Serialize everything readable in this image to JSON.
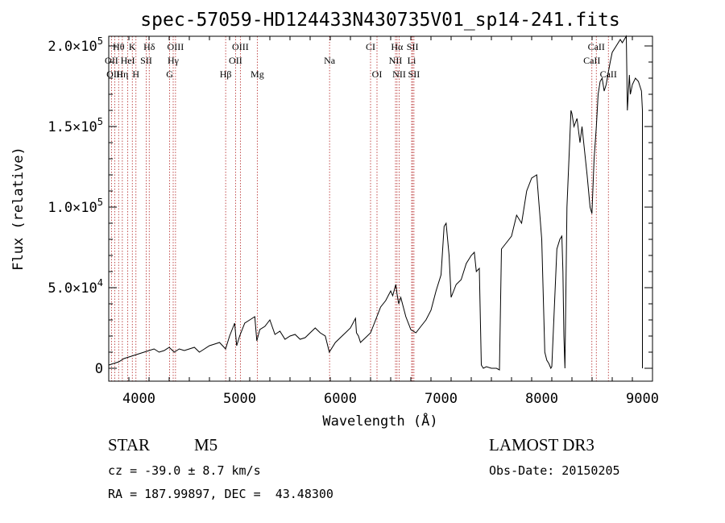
{
  "chart_data": {
    "type": "line",
    "title": "spec-57059-HD124433N430735V01_sp14-241.fits",
    "xlabel": "Wavelength (Å)",
    "ylabel": "Flux (relative)",
    "xlim": [
      3700,
      9100
    ],
    "ylim": [
      -8000,
      206000
    ],
    "x_ticks": [
      4000,
      5000,
      6000,
      7000,
      8000,
      9000
    ],
    "x_tick_labels": [
      "4000",
      "5000",
      "6000",
      "7000",
      "8000",
      "9000"
    ],
    "y_ticks": [
      0,
      50000,
      100000,
      150000,
      200000
    ],
    "y_tick_labels": [
      {
        "mantissa": "0",
        "exp": ""
      },
      {
        "mantissa": "5.0×10",
        "exp": "4"
      },
      {
        "mantissa": "1.0×10",
        "exp": "5"
      },
      {
        "mantissa": "1.5×10",
        "exp": "5"
      },
      {
        "mantissa": "2.0×10",
        "exp": "5"
      }
    ],
    "series": [
      {
        "name": "spectrum",
        "x": [
          3700,
          3750,
          3800,
          3850,
          3900,
          3950,
          4000,
          4050,
          4100,
          4150,
          4200,
          4250,
          4300,
          4350,
          4400,
          4450,
          4500,
          4550,
          4600,
          4650,
          4700,
          4750,
          4800,
          4830,
          4860,
          4900,
          4950,
          4970,
          5000,
          5050,
          5100,
          5150,
          5170,
          5200,
          5250,
          5300,
          5350,
          5400,
          5450,
          5500,
          5550,
          5600,
          5650,
          5700,
          5750,
          5800,
          5850,
          5890,
          5950,
          6000,
          6050,
          6100,
          6150,
          6160,
          6180,
          6200,
          6250,
          6300,
          6350,
          6400,
          6450,
          6500,
          6520,
          6550,
          6563,
          6580,
          6600,
          6650,
          6700,
          6750,
          6800,
          6850,
          6900,
          6950,
          7000,
          7030,
          7050,
          7080,
          7100,
          7150,
          7200,
          7250,
          7300,
          7330,
          7350,
          7380,
          7400,
          7420,
          7450,
          7500,
          7550,
          7580,
          7600,
          7650,
          7700,
          7750,
          7800,
          7850,
          7900,
          7950,
          8000,
          8030,
          8050,
          8070,
          8090,
          8100,
          8150,
          8180,
          8200,
          8210,
          8220,
          8230,
          8250,
          8270,
          8290,
          8300,
          8320,
          8350,
          8380,
          8400,
          8450,
          8480,
          8498,
          8520,
          8542,
          8560,
          8580,
          8600,
          8620,
          8640,
          8662,
          8680,
          8700,
          8740,
          8780,
          8800,
          8840,
          8850,
          8870,
          8880,
          8900,
          8930,
          8960,
          8990,
          9000,
          9000
        ],
        "values": [
          2000,
          3000,
          4000,
          6000,
          7000,
          8000,
          9000,
          10000,
          11000,
          12000,
          10000,
          11000,
          13000,
          10000,
          12000,
          11000,
          12000,
          13000,
          10000,
          12000,
          14000,
          15000,
          16000,
          14000,
          12000,
          20000,
          28000,
          14000,
          20000,
          28000,
          30000,
          32000,
          17000,
          24000,
          26000,
          30000,
          21000,
          23000,
          18000,
          20000,
          21000,
          18000,
          19000,
          22000,
          25000,
          22000,
          20000,
          10000,
          16000,
          19000,
          22000,
          25000,
          31000,
          22000,
          20000,
          16000,
          19000,
          22000,
          30000,
          38000,
          42000,
          48000,
          45000,
          52000,
          46000,
          40000,
          44000,
          32000,
          24000,
          22000,
          26000,
          30000,
          36000,
          48000,
          58000,
          88000,
          90000,
          70000,
          44000,
          52000,
          55000,
          65000,
          70000,
          72000,
          60000,
          62000,
          2000,
          0,
          1000,
          0,
          0,
          -1000,
          74000,
          78000,
          82000,
          95000,
          90000,
          110000,
          118000,
          120000,
          80000,
          10000,
          5000,
          3000,
          0,
          1000,
          74000,
          80000,
          82000,
          60000,
          20000,
          0,
          100000,
          130000,
          160000,
          158000,
          150000,
          155000,
          140000,
          150000,
          120000,
          100000,
          96000,
          130000,
          150000,
          170000,
          178000,
          180000,
          172000,
          176000,
          184000,
          190000,
          196000,
          200000,
          204000,
          202000,
          206000,
          160000,
          182000,
          170000,
          176000,
          180000,
          178000,
          172000,
          160000,
          0
        ]
      }
    ],
    "line_groups": [
      {
        "row": 0,
        "labels": [
          "Hθ",
          "K",
          "Hδ",
          "OIII",
          "OIII",
          "CI",
          "Hα",
          "SII",
          "CaII"
        ],
        "x": [
          3798,
          3934,
          4102,
          4363,
          5007,
          6300,
          6563,
          6717,
          8542
        ]
      },
      {
        "row": 1,
        "labels": [
          "OII",
          "HeI",
          "SII",
          "Hγ",
          "OII",
          "Na",
          "NII",
          "Li",
          "CaII"
        ],
        "x": [
          3727,
          3889,
          4072,
          4340,
          4959,
          5893,
          6548,
          6708,
          8498
        ]
      },
      {
        "row": 2,
        "labels": [
          "OIII",
          "Hη",
          "H",
          "G",
          "Hβ",
          "Mg",
          "OI",
          "NII",
          "SII",
          "CaII"
        ],
        "x": [
          3760,
          3835,
          3970,
          4305,
          4861,
          5175,
          6364,
          6584,
          6731,
          8662
        ]
      }
    ]
  },
  "info": {
    "object_class": "STAR",
    "subclass": "M5",
    "survey": "LAMOST DR3",
    "cz": "cz = -39.0 ± 8.7 km/s",
    "obs_date": "Obs-Date: 20150205",
    "coords": "RA = 187.99897, DEC =  43.48300"
  }
}
